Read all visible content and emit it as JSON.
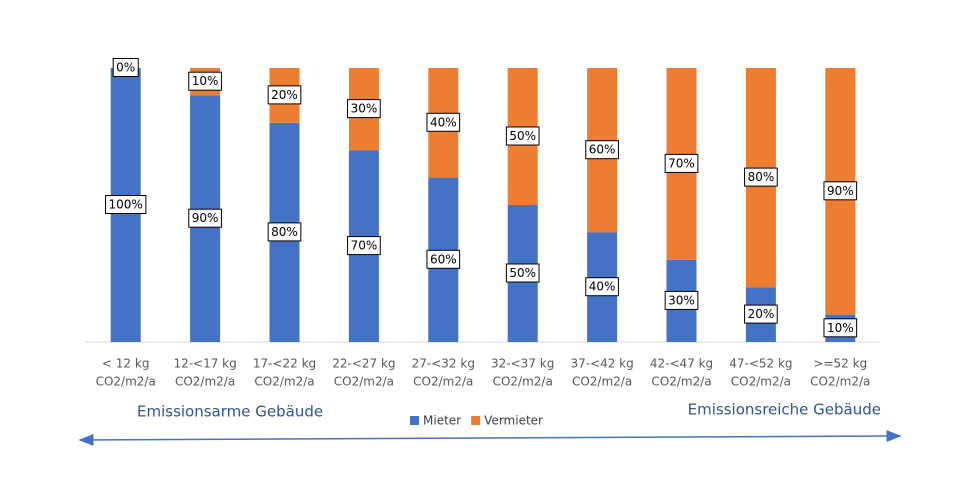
{
  "chart_data": {
    "type": "stacked_bar",
    "categories": [
      [
        "< 12 kg",
        "CO2/m2/a"
      ],
      [
        "12-<17 kg",
        "CO2/m2/a"
      ],
      [
        "17-<22 kg",
        "CO2/m2/a"
      ],
      [
        "22-<27 kg",
        "CO2/m2/a"
      ],
      [
        "27-<32 kg",
        "CO2/m2/a"
      ],
      [
        "32-<37 kg",
        "CO2/m2/a"
      ],
      [
        "37-<42 kg",
        "CO2/m2/a"
      ],
      [
        "42-<47 kg",
        "CO2/m2/a"
      ],
      [
        "47-<52 kg",
        "CO2/m2/a"
      ],
      [
        ">=52 kg",
        "CO2/m2/a"
      ]
    ],
    "series": [
      {
        "name": "Mieter",
        "color": "#4472c4",
        "values": [
          100,
          90,
          80,
          70,
          60,
          50,
          40,
          30,
          20,
          10
        ],
        "value_labels": [
          "100%",
          "90%",
          "80%",
          "70%",
          "60%",
          "50%",
          "40%",
          "30%",
          "20%",
          "10%"
        ]
      },
      {
        "name": "Vermieter",
        "color": "#ed7d31",
        "values": [
          0,
          10,
          20,
          30,
          40,
          50,
          60,
          70,
          80,
          90
        ],
        "value_labels": [
          "0%",
          "10%",
          "20%",
          "30%",
          "40%",
          "50%",
          "60%",
          "70%",
          "80%",
          "90%"
        ]
      }
    ],
    "annotations": [
      "Emissionsarme Gebäude",
      "Emissionsreiche Gebäude"
    ],
    "legend": "bottom"
  }
}
